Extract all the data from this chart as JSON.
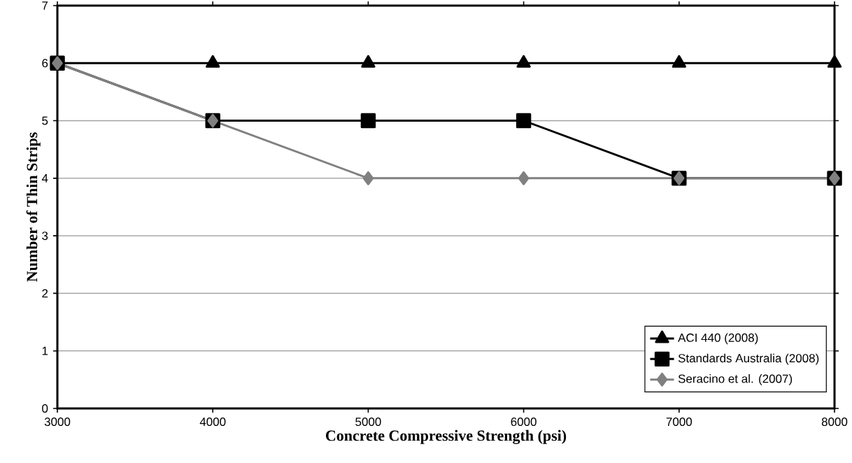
{
  "chart_data": {
    "type": "line",
    "xlabel": "Concrete Compressive Strength (psi)",
    "ylabel": "Number of Thin Strips",
    "x": [
      3000,
      4000,
      5000,
      6000,
      7000,
      8000
    ],
    "series": [
      {
        "name": "ACI 440 (2008)",
        "color": "#000000",
        "marker": "triangle",
        "values": [
          6,
          6,
          6,
          6,
          6,
          6
        ]
      },
      {
        "name": "Standards Australia (2008)",
        "color": "#000000",
        "marker": "square",
        "values": [
          6,
          5,
          5,
          5,
          4,
          4
        ]
      },
      {
        "name": "Seracino et al. (2007)",
        "color": "#808080",
        "marker": "diamond",
        "values": [
          6,
          5,
          4,
          4,
          4,
          4
        ]
      }
    ],
    "xlim": [
      3000,
      8000
    ],
    "xticks": [
      3000,
      4000,
      5000,
      6000,
      7000,
      8000
    ],
    "ylim": [
      0,
      7
    ],
    "yticks": [
      0,
      1,
      2,
      3,
      4,
      5,
      6,
      7
    ],
    "grid": "y",
    "legend": "bottom right",
    "line_style": "solid"
  }
}
